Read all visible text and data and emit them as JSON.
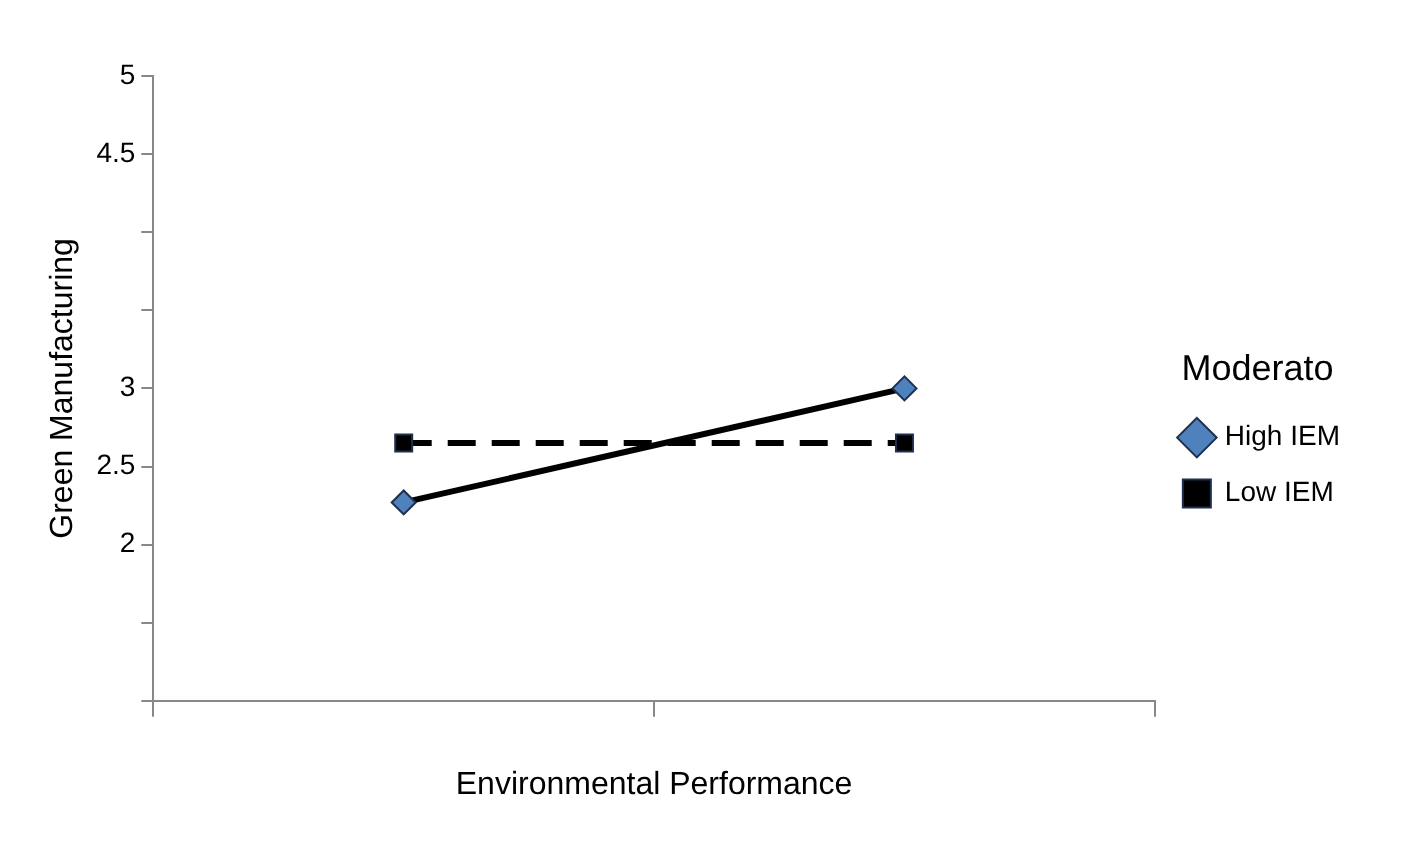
{
  "chart_data": {
    "type": "line",
    "xlabel": "Environmental Performance",
    "ylabel": "Green Manufacturing",
    "legend_title": "Moderato",
    "categories": [
      null,
      null
    ],
    "ylim": [
      1,
      5
    ],
    "yticks": [
      {
        "value": 1,
        "label": null
      },
      {
        "value": 1.5,
        "label": null
      },
      2,
      2.5,
      3,
      {
        "value": 3.5,
        "label": null
      },
      {
        "value": 4,
        "label": null
      },
      4.5,
      5
    ],
    "grid": false,
    "legend": "right",
    "series": [
      {
        "name": "High IEM",
        "color": "#4f81bd",
        "values": [
          2.27,
          3.0
        ],
        "marker": "diamond",
        "line_style": "solid"
      },
      {
        "name": "Low IEM",
        "color": "#000000",
        "values": [
          2.65,
          2.65
        ],
        "marker": "square",
        "line_style": "dashed"
      }
    ]
  }
}
